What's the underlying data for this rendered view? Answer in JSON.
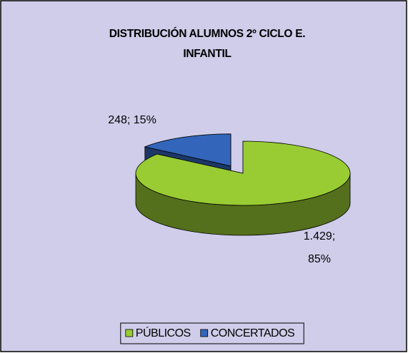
{
  "chart_data": {
    "type": "pie",
    "title": "DISTRIBUCIÓN ALUMNOS 2º CICLO E. INFANTIL",
    "categories": [
      "PÚBLICOS",
      "CONCERTADOS"
    ],
    "values": [
      1429,
      248
    ],
    "value_labels": [
      "1.429; 85%",
      "248; 15%"
    ],
    "colors": [
      "#99cc33",
      "#3366bb"
    ],
    "legend": "bottom"
  }
}
